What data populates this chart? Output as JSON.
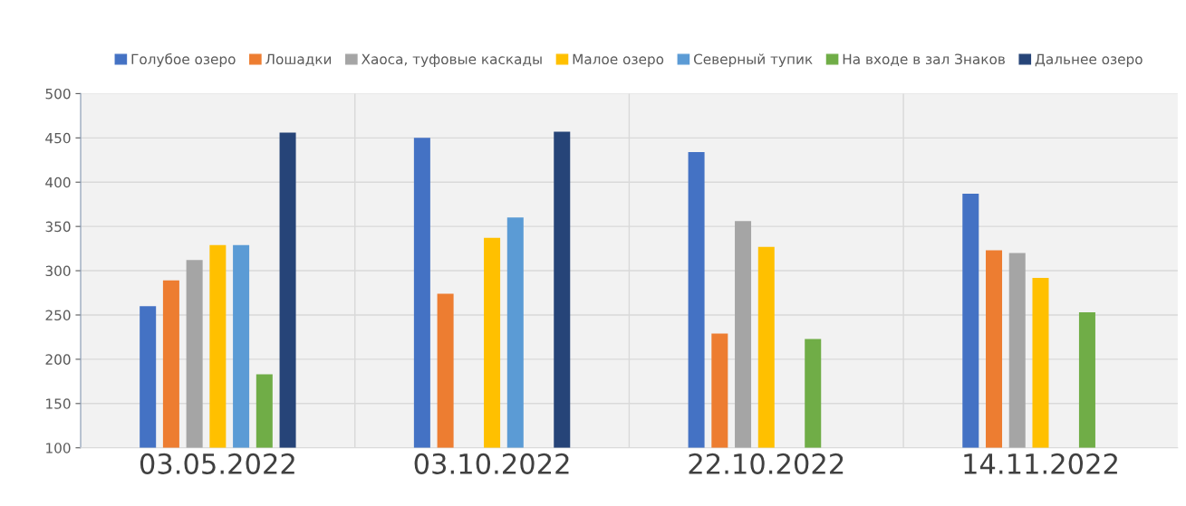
{
  "chart_data": {
    "type": "bar",
    "categories": [
      "03.05.2022",
      "03.10.2022",
      "22.10.2022",
      "14.11.2022"
    ],
    "series": [
      {
        "name": "Голубое озеро",
        "color": "#4472c4",
        "values": [
          260,
          450,
          434,
          387
        ]
      },
      {
        "name": "Лошадки",
        "color": "#ed7d31",
        "values": [
          289,
          274,
          229,
          323
        ]
      },
      {
        "name": "Хаоса, туфовые каскады",
        "color": "#a5a5a5",
        "values": [
          312,
          null,
          356,
          320
        ]
      },
      {
        "name": "Малое озеро",
        "color": "#ffc000",
        "values": [
          329,
          337,
          327,
          292
        ]
      },
      {
        "name": "Северный тупик",
        "color": "#5b9bd5",
        "values": [
          329,
          360,
          null,
          null
        ]
      },
      {
        "name": "На входе в зал Знаков",
        "color": "#70ad47",
        "values": [
          183,
          null,
          223,
          253
        ]
      },
      {
        "name": "Дальнее озеро",
        "color": "#264478",
        "values": [
          456,
          457,
          null,
          null
        ]
      }
    ],
    "ylim": [
      100,
      500
    ],
    "yticks": [
      100,
      150,
      200,
      250,
      300,
      350,
      400,
      450,
      500
    ],
    "grid": true,
    "legend": "top"
  }
}
